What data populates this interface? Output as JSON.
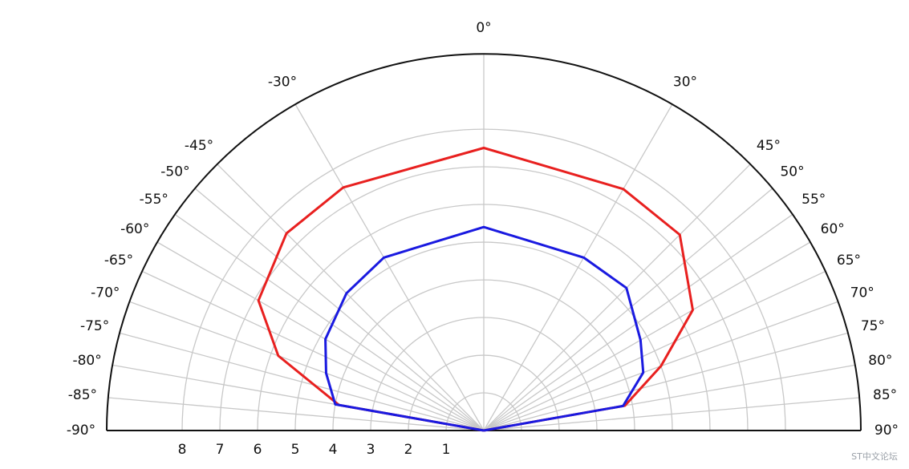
{
  "chart_data": {
    "type": "polar",
    "theta": [
      -90,
      -80,
      -70,
      -60,
      -45,
      -30,
      0,
      30,
      45,
      60,
      70,
      80,
      90
    ],
    "series": [
      {
        "color": "#e8201f",
        "values": [
          0,
          3.9,
          5.8,
          6.9,
          7.4,
          7.45,
          7.5,
          7.4,
          7.35,
          6.4,
          5.0,
          3.8,
          0
        ]
      },
      {
        "color": "#1a1ae0",
        "values": [
          0,
          4.0,
          4.45,
          4.85,
          5.15,
          5.3,
          5.4,
          5.3,
          5.35,
          4.8,
          4.5,
          3.75,
          0
        ]
      }
    ],
    "thetalim": [
      -90,
      90
    ],
    "thetaticks": [
      {
        "value": -90,
        "label": "-90°"
      },
      {
        "value": -85,
        "label": "-85°"
      },
      {
        "value": -80,
        "label": "-80°"
      },
      {
        "value": -75,
        "label": "-75°"
      },
      {
        "value": -70,
        "label": "-70°"
      },
      {
        "value": -65,
        "label": "-65°"
      },
      {
        "value": -60,
        "label": "-60°"
      },
      {
        "value": -55,
        "label": "-55°"
      },
      {
        "value": -50,
        "label": "-50°"
      },
      {
        "value": -45,
        "label": "-45°"
      },
      {
        "value": -30,
        "label": "-30°"
      },
      {
        "value": 0,
        "label": "0°"
      },
      {
        "value": 30,
        "label": "30°"
      },
      {
        "value": 45,
        "label": "45°"
      },
      {
        "value": 50,
        "label": "50°"
      },
      {
        "value": 55,
        "label": "55°"
      },
      {
        "value": 60,
        "label": "60°"
      },
      {
        "value": 65,
        "label": "65°"
      },
      {
        "value": 70,
        "label": "70°"
      },
      {
        "value": 75,
        "label": "75°"
      },
      {
        "value": 80,
        "label": "80°"
      },
      {
        "value": 85,
        "label": "85°"
      },
      {
        "value": 90,
        "label": "90°"
      }
    ],
    "rlim": [
      0,
      10
    ],
    "rticks": [
      1,
      2,
      3,
      4,
      5,
      6,
      7,
      8
    ],
    "grid": true,
    "watermark": "ST中文论坛"
  }
}
